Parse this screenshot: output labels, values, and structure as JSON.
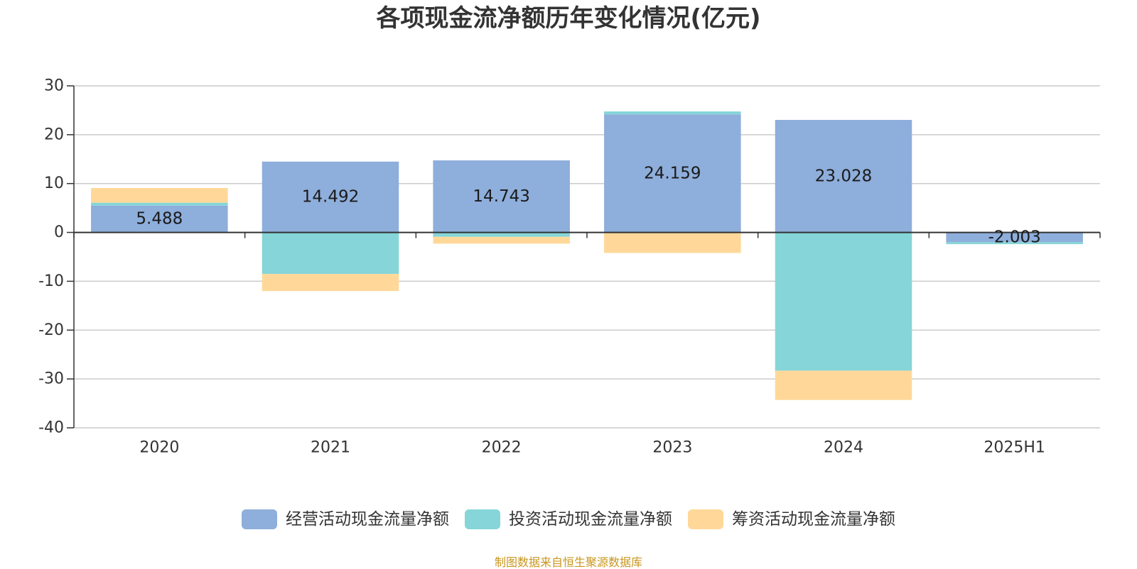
{
  "title": "各项现金流净额历年变化情况(亿元)",
  "source_note": "制图数据来自恒生聚源数据库",
  "colors": {
    "source_text": "#C8961E",
    "axis": "#333333",
    "grid": "#CCCCCC",
    "tick_text": "#333333",
    "data_label": "#1A1A1A"
  },
  "chart_data": {
    "type": "bar",
    "stacked": true,
    "categories": [
      "2020",
      "2021",
      "2022",
      "2023",
      "2024",
      "2025H1"
    ],
    "series": [
      {
        "name": "经营活动现金流量净额",
        "color": "#8EAEDB",
        "values": [
          5.488,
          14.492,
          14.743,
          24.159,
          23.028,
          -2.003
        ]
      },
      {
        "name": "投资活动现金流量净额",
        "color": "#86D5D8",
        "values": [
          0.6,
          -8.5,
          -0.9,
          0.6,
          -28.3,
          -0.4
        ]
      },
      {
        "name": "筹资活动现金流量净额",
        "color": "#FFD899",
        "values": [
          3.0,
          -3.5,
          -1.4,
          -4.2,
          -6.0,
          0.0
        ]
      }
    ],
    "data_labels": [
      "5.488",
      "14.492",
      "14.743",
      "24.159",
      "23.028",
      "-2.003"
    ],
    "ylim": [
      -40,
      30
    ],
    "yticks": [
      30,
      20,
      10,
      0,
      -10,
      -20,
      -30,
      -40
    ],
    "grid": true,
    "legend": "bottom-center"
  }
}
